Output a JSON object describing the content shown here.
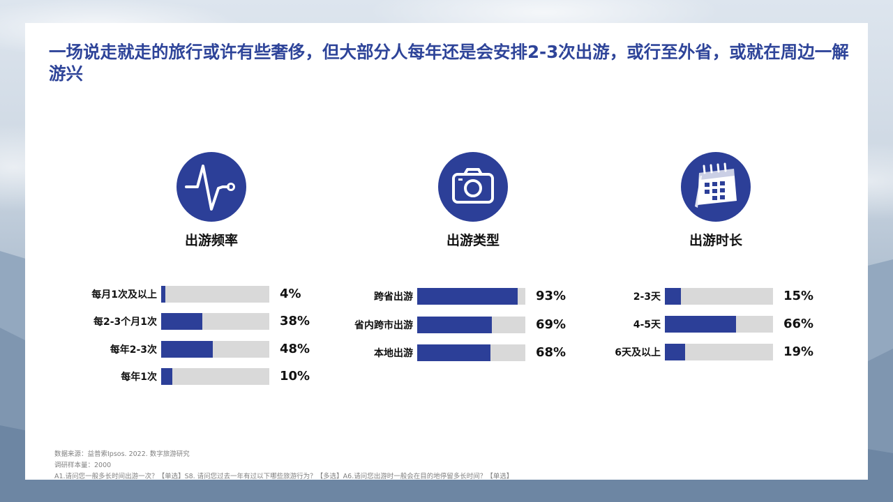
{
  "title": "一场说走就走的旅行或许有些奢侈，但大部分人每年还是会安排2-3次出游，或行至外省，或就在周边一解游兴",
  "colors": {
    "accent": "#2c3f98",
    "track": "#d9d9d9",
    "title": "#2e4499"
  },
  "panels": [
    {
      "title": "出游频率",
      "icon": "pulse-icon"
    },
    {
      "title": "出游类型",
      "icon": "camera-icon"
    },
    {
      "title": "出游时长",
      "icon": "calendar-icon"
    }
  ],
  "chart_data": [
    {
      "type": "bar",
      "title": "出游频率",
      "orientation": "horizontal",
      "unit": "%",
      "categories": [
        "每月1次及以上",
        "每2-3个月1次",
        "每年2-3次",
        "每年1次"
      ],
      "values": [
        4,
        38,
        48,
        10
      ],
      "labels": [
        "4%",
        "38%",
        "48%",
        "10%"
      ],
      "xlim": [
        0,
        100
      ]
    },
    {
      "type": "bar",
      "title": "出游类型",
      "orientation": "horizontal",
      "unit": "%",
      "categories": [
        "跨省出游",
        "省内跨市出游",
        "本地出游"
      ],
      "values": [
        93,
        69,
        68
      ],
      "labels": [
        "93%",
        "69%",
        "68%"
      ],
      "xlim": [
        0,
        100
      ]
    },
    {
      "type": "bar",
      "title": "出游时长",
      "orientation": "horizontal",
      "unit": "%",
      "categories": [
        "2-3天",
        "4-5天",
        "6天及以上"
      ],
      "values": [
        15,
        66,
        19
      ],
      "labels": [
        "15%",
        "66%",
        "19%"
      ],
      "xlim": [
        0,
        100
      ]
    }
  ],
  "footnotes": {
    "source": "数据来源：益普索Ipsos. 2022. 数字旅游研究",
    "sample": "调研样本量：2000",
    "questions": "A1.请问您一般多长时间出游一次？【单选】S8. 请问您过去一年有过以下哪些旅游行为？【多选】A6.请问您出游时一般会在目的地停留多长时间？【单选】"
  }
}
